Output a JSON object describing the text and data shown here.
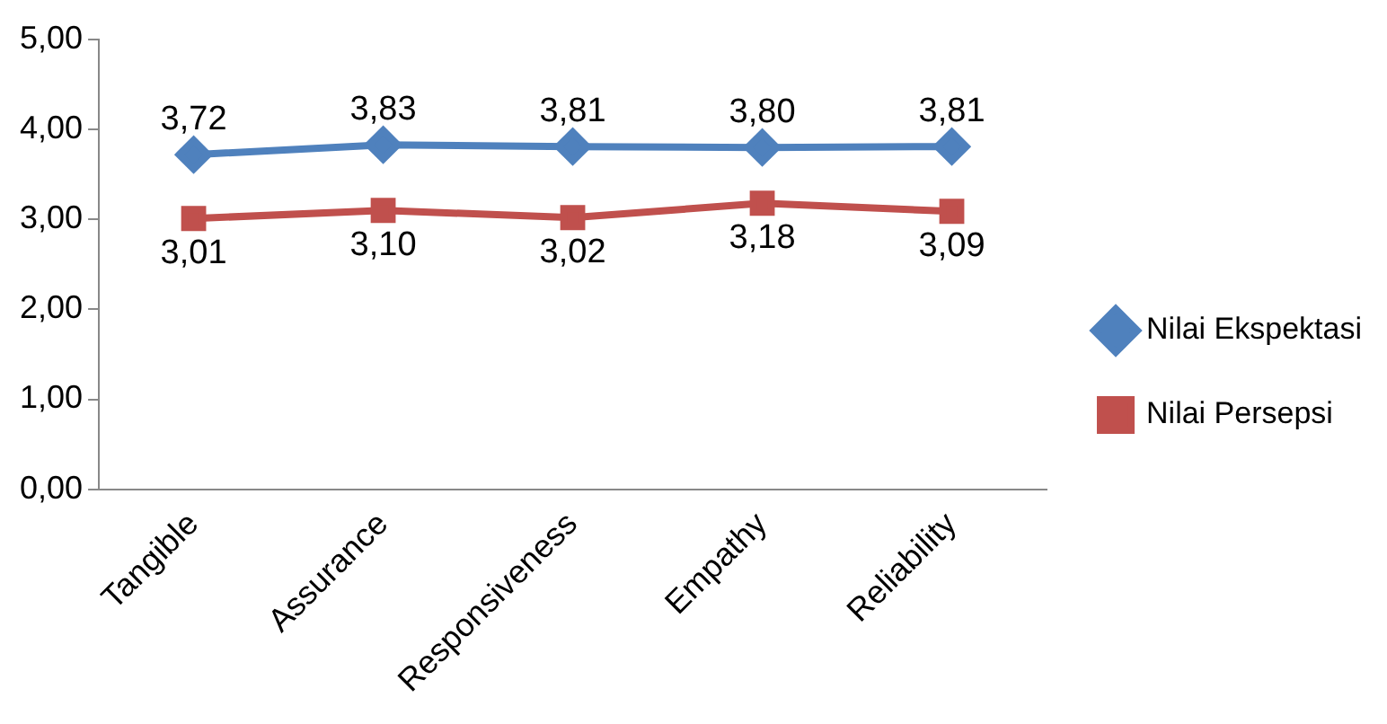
{
  "chart_data": {
    "type": "line",
    "categories": [
      "Tangible",
      "Assurance",
      "Responsiveness",
      "Empathy",
      "Reliability"
    ],
    "series": [
      {
        "name": "Nilai Ekspektasi",
        "color": "#4f81bd",
        "marker": "diamond",
        "values": [
          3.72,
          3.83,
          3.81,
          3.8,
          3.81
        ],
        "value_labels": [
          "3,72",
          "3,83",
          "3,81",
          "3,80",
          "3,81"
        ]
      },
      {
        "name": "Nilai Persepsi",
        "color": "#c0504d",
        "marker": "square",
        "values": [
          3.01,
          3.1,
          3.02,
          3.18,
          3.09
        ],
        "value_labels": [
          "3,01",
          "3,10",
          "3,02",
          "3,18",
          "3,09"
        ]
      }
    ],
    "ylim": [
      0,
      5
    ],
    "yticks": [
      {
        "value": 0,
        "label": "0,00"
      },
      {
        "value": 1,
        "label": "1,00"
      },
      {
        "value": 2,
        "label": "2,00"
      },
      {
        "value": 3,
        "label": "3,00"
      },
      {
        "value": 4,
        "label": "4,00"
      },
      {
        "value": 5,
        "label": "5,00"
      }
    ],
    "grid": false,
    "legend": "right"
  }
}
